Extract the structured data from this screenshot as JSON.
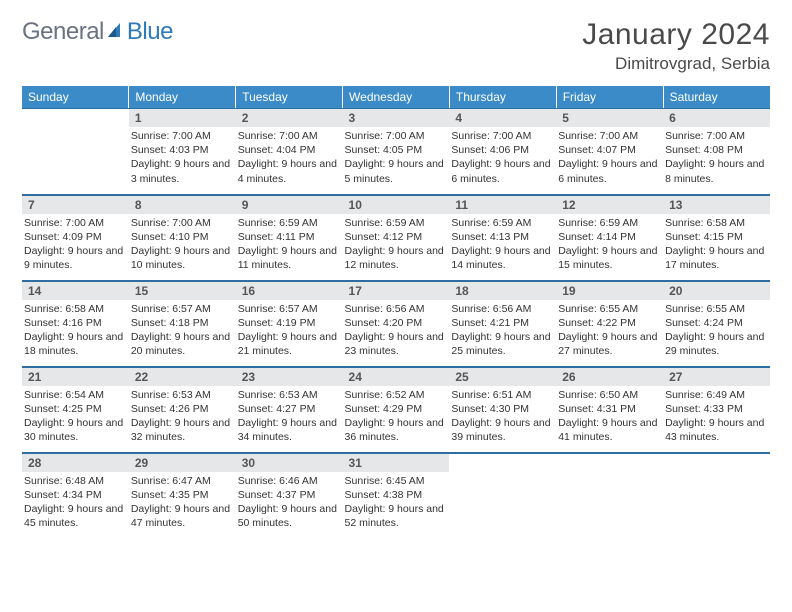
{
  "logo": {
    "word1": "General",
    "word2": "Blue"
  },
  "title": {
    "month": "January 2024",
    "location": "Dimitrovgrad, Serbia"
  },
  "colors": {
    "header_bg": "#3b8bc8",
    "header_text": "#ffffff",
    "row_border": "#2f6ea3",
    "daynum_bg": "#e6e7e8",
    "daynum_text": "#555555",
    "body_text": "#333333",
    "page_bg": "#ffffff",
    "logo_gray": "#6b7280",
    "logo_blue": "#2f7ab8"
  },
  "weekdays": [
    "Sunday",
    "Monday",
    "Tuesday",
    "Wednesday",
    "Thursday",
    "Friday",
    "Saturday"
  ],
  "weeks": [
    [
      {
        "n": "",
        "sr": "",
        "ss": "",
        "dl": ""
      },
      {
        "n": "1",
        "sr": "Sunrise: 7:00 AM",
        "ss": "Sunset: 4:03 PM",
        "dl": "Daylight: 9 hours and 3 minutes."
      },
      {
        "n": "2",
        "sr": "Sunrise: 7:00 AM",
        "ss": "Sunset: 4:04 PM",
        "dl": "Daylight: 9 hours and 4 minutes."
      },
      {
        "n": "3",
        "sr": "Sunrise: 7:00 AM",
        "ss": "Sunset: 4:05 PM",
        "dl": "Daylight: 9 hours and 5 minutes."
      },
      {
        "n": "4",
        "sr": "Sunrise: 7:00 AM",
        "ss": "Sunset: 4:06 PM",
        "dl": "Daylight: 9 hours and 6 minutes."
      },
      {
        "n": "5",
        "sr": "Sunrise: 7:00 AM",
        "ss": "Sunset: 4:07 PM",
        "dl": "Daylight: 9 hours and 6 minutes."
      },
      {
        "n": "6",
        "sr": "Sunrise: 7:00 AM",
        "ss": "Sunset: 4:08 PM",
        "dl": "Daylight: 9 hours and 8 minutes."
      }
    ],
    [
      {
        "n": "7",
        "sr": "Sunrise: 7:00 AM",
        "ss": "Sunset: 4:09 PM",
        "dl": "Daylight: 9 hours and 9 minutes."
      },
      {
        "n": "8",
        "sr": "Sunrise: 7:00 AM",
        "ss": "Sunset: 4:10 PM",
        "dl": "Daylight: 9 hours and 10 minutes."
      },
      {
        "n": "9",
        "sr": "Sunrise: 6:59 AM",
        "ss": "Sunset: 4:11 PM",
        "dl": "Daylight: 9 hours and 11 minutes."
      },
      {
        "n": "10",
        "sr": "Sunrise: 6:59 AM",
        "ss": "Sunset: 4:12 PM",
        "dl": "Daylight: 9 hours and 12 minutes."
      },
      {
        "n": "11",
        "sr": "Sunrise: 6:59 AM",
        "ss": "Sunset: 4:13 PM",
        "dl": "Daylight: 9 hours and 14 minutes."
      },
      {
        "n": "12",
        "sr": "Sunrise: 6:59 AM",
        "ss": "Sunset: 4:14 PM",
        "dl": "Daylight: 9 hours and 15 minutes."
      },
      {
        "n": "13",
        "sr": "Sunrise: 6:58 AM",
        "ss": "Sunset: 4:15 PM",
        "dl": "Daylight: 9 hours and 17 minutes."
      }
    ],
    [
      {
        "n": "14",
        "sr": "Sunrise: 6:58 AM",
        "ss": "Sunset: 4:16 PM",
        "dl": "Daylight: 9 hours and 18 minutes."
      },
      {
        "n": "15",
        "sr": "Sunrise: 6:57 AM",
        "ss": "Sunset: 4:18 PM",
        "dl": "Daylight: 9 hours and 20 minutes."
      },
      {
        "n": "16",
        "sr": "Sunrise: 6:57 AM",
        "ss": "Sunset: 4:19 PM",
        "dl": "Daylight: 9 hours and 21 minutes."
      },
      {
        "n": "17",
        "sr": "Sunrise: 6:56 AM",
        "ss": "Sunset: 4:20 PM",
        "dl": "Daylight: 9 hours and 23 minutes."
      },
      {
        "n": "18",
        "sr": "Sunrise: 6:56 AM",
        "ss": "Sunset: 4:21 PM",
        "dl": "Daylight: 9 hours and 25 minutes."
      },
      {
        "n": "19",
        "sr": "Sunrise: 6:55 AM",
        "ss": "Sunset: 4:22 PM",
        "dl": "Daylight: 9 hours and 27 minutes."
      },
      {
        "n": "20",
        "sr": "Sunrise: 6:55 AM",
        "ss": "Sunset: 4:24 PM",
        "dl": "Daylight: 9 hours and 29 minutes."
      }
    ],
    [
      {
        "n": "21",
        "sr": "Sunrise: 6:54 AM",
        "ss": "Sunset: 4:25 PM",
        "dl": "Daylight: 9 hours and 30 minutes."
      },
      {
        "n": "22",
        "sr": "Sunrise: 6:53 AM",
        "ss": "Sunset: 4:26 PM",
        "dl": "Daylight: 9 hours and 32 minutes."
      },
      {
        "n": "23",
        "sr": "Sunrise: 6:53 AM",
        "ss": "Sunset: 4:27 PM",
        "dl": "Daylight: 9 hours and 34 minutes."
      },
      {
        "n": "24",
        "sr": "Sunrise: 6:52 AM",
        "ss": "Sunset: 4:29 PM",
        "dl": "Daylight: 9 hours and 36 minutes."
      },
      {
        "n": "25",
        "sr": "Sunrise: 6:51 AM",
        "ss": "Sunset: 4:30 PM",
        "dl": "Daylight: 9 hours and 39 minutes."
      },
      {
        "n": "26",
        "sr": "Sunrise: 6:50 AM",
        "ss": "Sunset: 4:31 PM",
        "dl": "Daylight: 9 hours and 41 minutes."
      },
      {
        "n": "27",
        "sr": "Sunrise: 6:49 AM",
        "ss": "Sunset: 4:33 PM",
        "dl": "Daylight: 9 hours and 43 minutes."
      }
    ],
    [
      {
        "n": "28",
        "sr": "Sunrise: 6:48 AM",
        "ss": "Sunset: 4:34 PM",
        "dl": "Daylight: 9 hours and 45 minutes."
      },
      {
        "n": "29",
        "sr": "Sunrise: 6:47 AM",
        "ss": "Sunset: 4:35 PM",
        "dl": "Daylight: 9 hours and 47 minutes."
      },
      {
        "n": "30",
        "sr": "Sunrise: 6:46 AM",
        "ss": "Sunset: 4:37 PM",
        "dl": "Daylight: 9 hours and 50 minutes."
      },
      {
        "n": "31",
        "sr": "Sunrise: 6:45 AM",
        "ss": "Sunset: 4:38 PM",
        "dl": "Daylight: 9 hours and 52 minutes."
      },
      {
        "n": "",
        "sr": "",
        "ss": "",
        "dl": ""
      },
      {
        "n": "",
        "sr": "",
        "ss": "",
        "dl": ""
      },
      {
        "n": "",
        "sr": "",
        "ss": "",
        "dl": ""
      }
    ]
  ]
}
